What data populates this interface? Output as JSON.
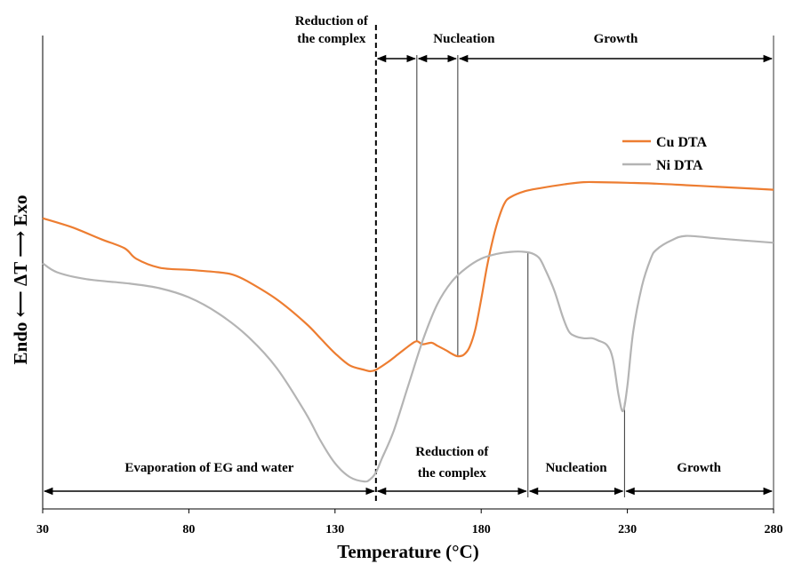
{
  "chart_data": {
    "type": "line",
    "xlabel": "Temperature (°C)",
    "ylabel": "Endo ⟵ ΔT ⟶ Exo",
    "xlim": [
      30,
      280
    ],
    "xticks": [
      "30",
      "80",
      "130",
      "180",
      "230",
      "280"
    ],
    "grid": false,
    "legend_position": "right",
    "colors": {
      "cu": "#ED7D31",
      "ni": "#B4B4B4"
    },
    "series": [
      {
        "name": "Cu DTA",
        "x": [
          30,
          40,
          50,
          58,
          62,
          70,
          80,
          90,
          95,
          100,
          110,
          120,
          125,
          130,
          135,
          140,
          142,
          144,
          148,
          152,
          156,
          158,
          160,
          163,
          165,
          168,
          170,
          172,
          174,
          176,
          178,
          180,
          182,
          184,
          186,
          188,
          190,
          195,
          200,
          210,
          215,
          220,
          230,
          240,
          250,
          260,
          270,
          280
        ],
        "y": [
          0.93,
          0.9,
          0.86,
          0.83,
          0.795,
          0.765,
          0.758,
          0.75,
          0.742,
          0.72,
          0.66,
          0.58,
          0.53,
          0.48,
          0.44,
          0.425,
          0.42,
          0.425,
          0.45,
          0.48,
          0.51,
          0.52,
          0.51,
          0.515,
          0.505,
          0.49,
          0.478,
          0.47,
          0.475,
          0.5,
          0.56,
          0.66,
          0.77,
          0.86,
          0.93,
          0.98,
          1.0,
          1.02,
          1.03,
          1.045,
          1.05,
          1.05,
          1.048,
          1.045,
          1.04,
          1.035,
          1.03,
          1.025
        ]
      },
      {
        "name": "Ni DTA",
        "x": [
          30,
          35,
          45,
          60,
          70,
          80,
          90,
          100,
          110,
          120,
          125,
          130,
          135,
          140,
          142,
          144,
          146,
          150,
          155,
          160,
          165,
          170,
          175,
          180,
          185,
          190,
          195,
          198,
          200,
          202,
          205,
          208,
          210,
          212,
          215,
          218,
          220,
          223,
          225,
          227,
          228.5,
          230,
          232,
          235,
          238,
          240,
          245,
          250,
          260,
          270,
          280
        ],
        "y": [
          0.47,
          0.45,
          0.435,
          0.425,
          0.415,
          0.395,
          0.36,
          0.31,
          0.24,
          0.14,
          0.08,
          0.03,
          0.0,
          -0.01,
          -0.005,
          0.01,
          0.04,
          0.1,
          0.2,
          0.3,
          0.38,
          0.43,
          0.46,
          0.48,
          0.49,
          0.495,
          0.495,
          0.49,
          0.48,
          0.455,
          0.41,
          0.35,
          0.32,
          0.31,
          0.305,
          0.305,
          0.3,
          0.29,
          0.26,
          0.18,
          0.145,
          0.2,
          0.32,
          0.42,
          0.48,
          0.5,
          0.52,
          0.53,
          0.525,
          0.52,
          0.515
        ]
      }
    ],
    "reference_lines": [
      {
        "x": 144,
        "style": "dashed"
      },
      {
        "x": 158,
        "style": "solid",
        "series": "Cu DTA"
      },
      {
        "x": 172,
        "style": "solid",
        "series": "Cu DTA"
      },
      {
        "x": 196,
        "style": "solid",
        "series": "Ni DTA"
      },
      {
        "x": 229,
        "style": "solid",
        "series": "Ni DTA"
      }
    ],
    "cu_phases": [
      {
        "label": "Reduction of the complex",
        "lines": [
          "Reduction of",
          "the complex"
        ],
        "from": 144,
        "to": 158
      },
      {
        "label": "Nucleation",
        "lines": [
          "Nucleation"
        ],
        "from": 158,
        "to": 172
      },
      {
        "label": "Growth",
        "lines": [
          "Growth"
        ],
        "from": 172,
        "to": 280
      }
    ],
    "ni_phases": [
      {
        "label": "Evaporation of EG and water",
        "lines": [
          "Evaporation of EG and water"
        ],
        "from": 30,
        "to": 144
      },
      {
        "label": "Reduction of the complex",
        "lines": [
          "Reduction of",
          "the complex"
        ],
        "from": 144,
        "to": 196
      },
      {
        "label": "Nucleation",
        "lines": [
          "Nucleation"
        ],
        "from": 196,
        "to": 229
      },
      {
        "label": "Growth",
        "lines": [
          "Growth"
        ],
        "from": 229,
        "to": 280
      }
    ]
  }
}
